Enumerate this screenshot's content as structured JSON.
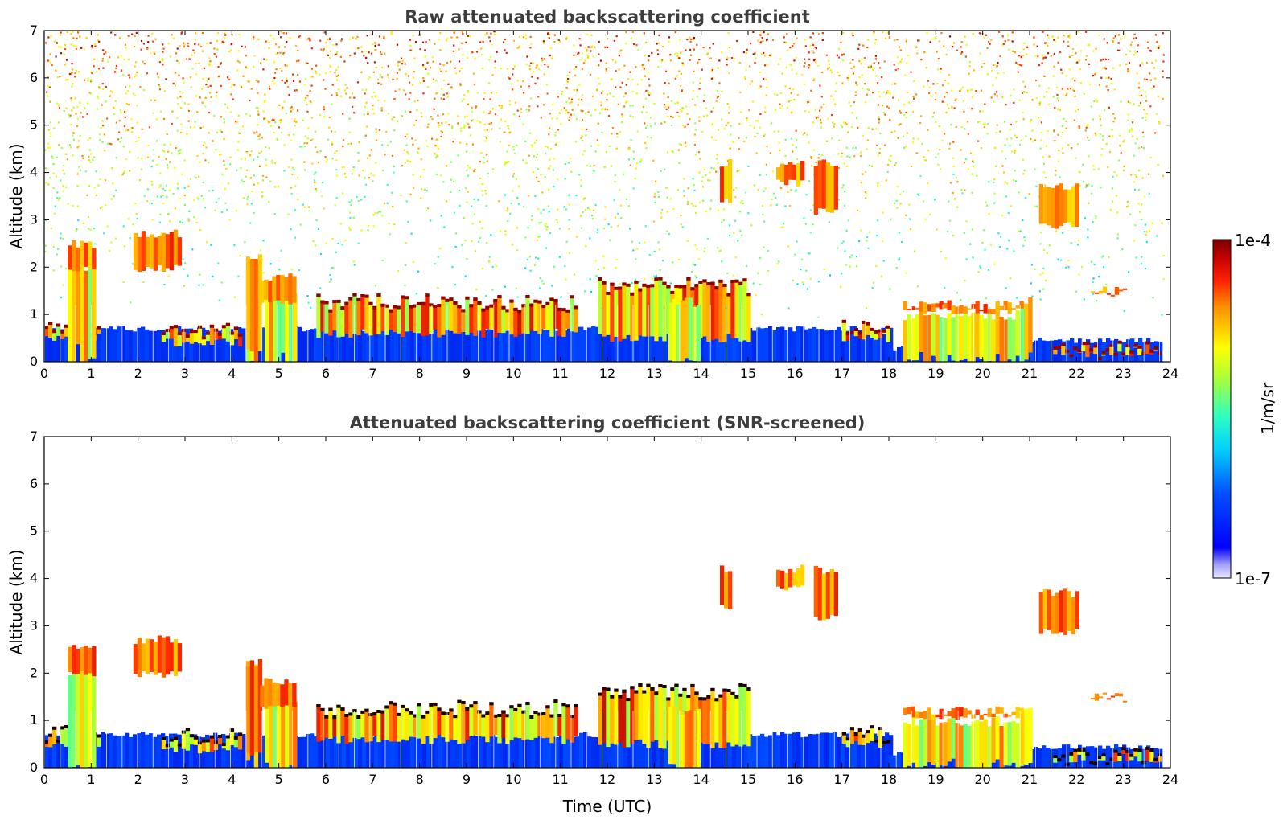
{
  "chart_data": [
    {
      "type": "heatmap",
      "title": "Raw attenuated backscattering coefficient",
      "xlabel": "",
      "ylabel": "Altitude (km)",
      "xlim": [
        0,
        24
      ],
      "ylim": [
        0,
        7
      ],
      "x_ticks": [
        "0",
        "1",
        "2",
        "3",
        "4",
        "5",
        "6",
        "7",
        "8",
        "9",
        "10",
        "11",
        "12",
        "13",
        "14",
        "15",
        "16",
        "17",
        "18",
        "19",
        "20",
        "21",
        "22",
        "23",
        "24"
      ],
      "y_ticks": [
        "0",
        "1",
        "2",
        "3",
        "4",
        "5",
        "6",
        "7"
      ],
      "screened": false,
      "background_noise": true,
      "boundary_layer": [
        {
          "t": [
            0,
            18
          ],
          "top_km": 0.7
        },
        {
          "t": [
            18,
            21
          ],
          "top_km": 0.3
        },
        {
          "t": [
            21,
            23.8
          ],
          "top_km": 0.45
        }
      ],
      "aerosol_layers": [
        {
          "t": [
            0,
            1.2
          ],
          "base_km": 0.4,
          "top_km": 0.9
        },
        {
          "t": [
            2.5,
            4.2
          ],
          "base_km": 0.3,
          "top_km": 0.85
        },
        {
          "t": [
            5.8,
            11.3
          ],
          "base_km": 0.5,
          "top_km": 1.45
        },
        {
          "t": [
            11.8,
            15.0
          ],
          "base_km": 0.4,
          "top_km": 1.8
        },
        {
          "t": [
            17.0,
            18.0
          ],
          "base_km": 0.4,
          "top_km": 0.9
        },
        {
          "t": [
            21.5,
            23.8
          ],
          "base_km": 0.1,
          "top_km": 0.45
        }
      ],
      "cloud_layers": [
        {
          "t": [
            0.5,
            1.1
          ],
          "base_km": 1.9,
          "top_km": 2.6
        },
        {
          "t": [
            1.9,
            2.9
          ],
          "base_km": 1.9,
          "top_km": 2.8
        },
        {
          "t": [
            4.3,
            4.6
          ],
          "base_km": 0.2,
          "top_km": 2.3
        },
        {
          "t": [
            4.6,
            5.3
          ],
          "base_km": 1.2,
          "top_km": 1.9
        },
        {
          "t": [
            14.4,
            14.6
          ],
          "base_km": 3.3,
          "top_km": 4.3
        },
        {
          "t": [
            15.6,
            16.2
          ],
          "base_km": 3.7,
          "top_km": 4.3
        },
        {
          "t": [
            16.4,
            16.9
          ],
          "base_km": 3.1,
          "top_km": 4.3
        },
        {
          "t": [
            18.3,
            20.8
          ],
          "base_km": 1.0,
          "top_km": 1.3
        },
        {
          "t": [
            21.2,
            22.0
          ],
          "base_km": 2.8,
          "top_km": 3.8
        },
        {
          "t": [
            22.3,
            23.0
          ],
          "base_km": 1.4,
          "top_km": 1.6
        }
      ],
      "precip_columns": [
        {
          "t": [
            0.5,
            1.1
          ],
          "top_km": 2.4
        },
        {
          "t": [
            4.3,
            4.5
          ],
          "top_km": 2.3
        },
        {
          "t": [
            4.7,
            5.3
          ],
          "top_km": 1.6
        },
        {
          "t": [
            13.3,
            13.9
          ],
          "top_km": 1.4
        },
        {
          "t": [
            18.3,
            20.8
          ],
          "top_km": 1.1
        },
        {
          "t": [
            20.8,
            21.0
          ],
          "top_km": 1.4
        }
      ]
    },
    {
      "type": "heatmap",
      "title": "Attenuated backscattering coefficient (SNR-screened)",
      "xlabel": "Time (UTC)",
      "ylabel": "Altitude (km)",
      "xlim": [
        0,
        24
      ],
      "ylim": [
        0,
        7
      ],
      "x_ticks": [
        "0",
        "1",
        "2",
        "3",
        "4",
        "5",
        "6",
        "7",
        "8",
        "9",
        "10",
        "11",
        "12",
        "13",
        "14",
        "15",
        "16",
        "17",
        "18",
        "19",
        "20",
        "21",
        "22",
        "23",
        "24"
      ],
      "y_ticks": [
        "0",
        "1",
        "2",
        "3",
        "4",
        "5",
        "6",
        "7"
      ],
      "screened": true,
      "background_noise": false
    }
  ],
  "colorbar": {
    "label": "1/m/sr",
    "max_label": "1e-4",
    "min_label": "1e-7",
    "scale": "log",
    "range": [
      1e-07,
      0.0001
    ]
  },
  "colors": {
    "low": "#0000ff",
    "mid_low": "#00ffff",
    "mid": "#ffff00",
    "mid_high": "#ff4400",
    "high": "#7a0000",
    "title": "#3d3d3d"
  }
}
